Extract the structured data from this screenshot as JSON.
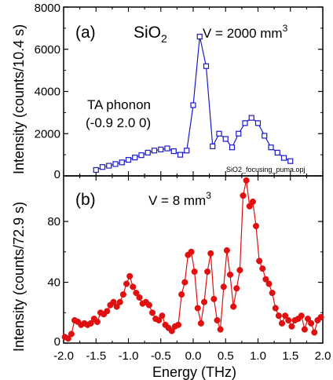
{
  "chart_data": [
    {
      "type": "line",
      "panel_label": "(a)",
      "title": "SiO",
      "title_sub": "2",
      "volume_label": "V = 2000 mm",
      "volume_sup": "3",
      "annotation_line1": "TA phonon",
      "annotation_line2": "(-0.9 2.0 0)",
      "file_label": "SiO2_focusing_puma.opj",
      "ylabel": "Intensity (counts/10.4 s)",
      "xlim": [
        -2.0,
        2.0
      ],
      "ylim": [
        0,
        8000
      ],
      "yticks": [
        "0",
        "2000",
        "4000",
        "6000",
        "8000"
      ],
      "marker": "open-square",
      "color": "#1a1acc",
      "grid": false,
      "x": [
        -1.5,
        -1.4,
        -1.3,
        -1.2,
        -1.1,
        -1.0,
        -0.9,
        -0.8,
        -0.7,
        -0.6,
        -0.5,
        -0.4,
        -0.3,
        -0.2,
        -0.1,
        0.0,
        0.1,
        0.2,
        0.3,
        0.4,
        0.5,
        0.6,
        0.7,
        0.8,
        0.9,
        1.0,
        1.1,
        1.2,
        1.3,
        1.4,
        1.5
      ],
      "y": [
        280,
        420,
        480,
        560,
        640,
        760,
        870,
        980,
        1100,
        1200,
        1250,
        1300,
        1170,
        1000,
        1200,
        3350,
        6600,
        5200,
        1400,
        2000,
        1750,
        1350,
        2000,
        2500,
        2750,
        2500,
        1900,
        1350,
        1100,
        850,
        700
      ]
    },
    {
      "type": "line",
      "panel_label": "(b)",
      "volume_label": "V = 8 mm",
      "volume_sup": "3",
      "ylabel": "Intensity (counts/72.9 s)",
      "xlabel": "Energy (THz)",
      "xlim": [
        -2.0,
        2.0
      ],
      "ylim": [
        0,
        110
      ],
      "yticks": [
        "0",
        "40",
        "80"
      ],
      "xticks": [
        "-2.0",
        "-1.5",
        "-1.0",
        "-0.5",
        "0.0",
        "0.5",
        "1.0",
        "1.5",
        "2.0"
      ],
      "marker": "filled-circle",
      "color": "#e01010",
      "grid": false,
      "x": [
        -1.98,
        -1.93,
        -1.88,
        -1.83,
        -1.78,
        -1.73,
        -1.68,
        -1.63,
        -1.58,
        -1.53,
        -1.48,
        -1.43,
        -1.38,
        -1.33,
        -1.28,
        -1.23,
        -1.18,
        -1.13,
        -1.08,
        -1.03,
        -0.98,
        -0.93,
        -0.88,
        -0.83,
        -0.78,
        -0.73,
        -0.68,
        -0.63,
        -0.58,
        -0.53,
        -0.48,
        -0.43,
        -0.38,
        -0.33,
        -0.28,
        -0.23,
        -0.18,
        -0.13,
        -0.08,
        -0.03,
        0.02,
        0.07,
        0.12,
        0.17,
        0.22,
        0.27,
        0.32,
        0.37,
        0.42,
        0.47,
        0.52,
        0.57,
        0.62,
        0.67,
        0.72,
        0.77,
        0.82,
        0.87,
        0.92,
        0.97,
        1.02,
        1.07,
        1.12,
        1.17,
        1.22,
        1.27,
        1.32,
        1.37,
        1.42,
        1.47,
        1.52,
        1.57,
        1.62,
        1.67,
        1.72,
        1.77,
        1.82,
        1.87,
        1.92,
        1.97
      ],
      "y": [
        4,
        3,
        6,
        15,
        14,
        12,
        13,
        12,
        13,
        16,
        14,
        20,
        19,
        21,
        25,
        27,
        24,
        27,
        32,
        39,
        44,
        37,
        33,
        30,
        26,
        27,
        25,
        20,
        16,
        15,
        18,
        12,
        10,
        8,
        11,
        12,
        32,
        40,
        58,
        60,
        47,
        23,
        13,
        27,
        47,
        59,
        29,
        15,
        9,
        37,
        61,
        45,
        24,
        36,
        48,
        97,
        107,
        90,
        93,
        77,
        54,
        49,
        42,
        39,
        33,
        23,
        18,
        13,
        18,
        15,
        11,
        15,
        16,
        18,
        9,
        16,
        13,
        7,
        15,
        17
      ]
    }
  ]
}
